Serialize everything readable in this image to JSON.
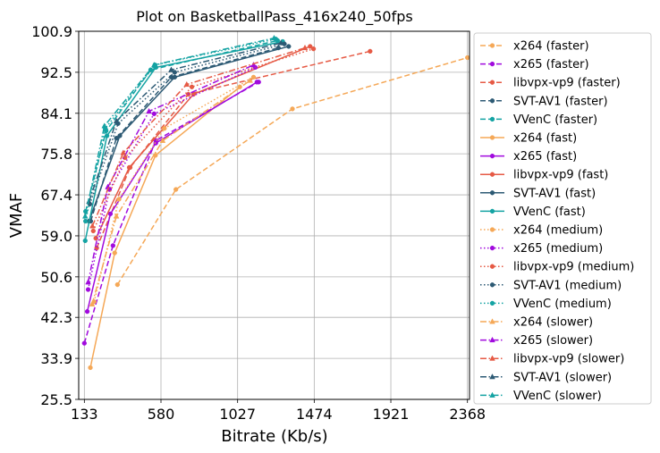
{
  "chart_data": {
    "type": "line",
    "title": "Plot on BasketballPass_416x240_50fps",
    "xlabel": "Bitrate (Kb/s)",
    "ylabel": "VMAF",
    "xlim": [
      100,
      2380
    ],
    "ylim": [
      25.5,
      100.9
    ],
    "xticks": [
      133,
      580,
      1027,
      1474,
      1921,
      2368
    ],
    "yticks": [
      25.5,
      33.9,
      42.3,
      50.6,
      59.0,
      67.4,
      75.8,
      84.1,
      92.5,
      100.9
    ],
    "grid": true,
    "legend_position": "outside-right",
    "series": [
      {
        "name": "x264 (faster)",
        "color": "#f5a857",
        "dash": "dashed",
        "marker": "circle",
        "x": [
          326,
          667,
          1347,
          2368
        ],
        "y": [
          49.0,
          68.5,
          85.0,
          95.5
        ]
      },
      {
        "name": "x265 (faster)",
        "color": "#a10ade",
        "dash": "dashed",
        "marker": "circle",
        "x": [
          133,
          300,
          550,
          1150
        ],
        "y": [
          37.0,
          57.0,
          78.5,
          90.5
        ]
      },
      {
        "name": "libvpx-vp9 (faster)",
        "color": "#e65a45",
        "dash": "dashed",
        "marker": "circle",
        "x": [
          205,
          400,
          740,
          1800
        ],
        "y": [
          56.5,
          73.0,
          88.0,
          96.8
        ]
      },
      {
        "name": "SVT-AV1 (faster)",
        "color": "#2d5a74",
        "dash": "dashed",
        "marker": "circle",
        "x": [
          170,
          320,
          640,
          1265
        ],
        "y": [
          62.0,
          79.0,
          91.5,
          97.5
        ]
      },
      {
        "name": "VVenC (faster)",
        "color": "#14a3a3",
        "dash": "dashed",
        "marker": "circle",
        "x": [
          140,
          260,
          520,
          1260
        ],
        "y": [
          64.0,
          80.5,
          93.0,
          99.0
        ]
      },
      {
        "name": "x264 (fast)",
        "color": "#f5a857",
        "dash": "solid",
        "marker": "circle",
        "x": [
          168,
          310,
          548,
          1040
        ],
        "y": [
          32.0,
          55.5,
          75.5,
          89.5
        ]
      },
      {
        "name": "x265 (fast)",
        "color": "#a10ade",
        "dash": "solid",
        "marker": "circle",
        "x": [
          150,
          285,
          550,
          1140
        ],
        "y": [
          43.5,
          63.5,
          78.0,
          90.5
        ]
      },
      {
        "name": "libvpx-vp9 (fast)",
        "color": "#e65a45",
        "dash": "solid",
        "marker": "circle",
        "x": [
          200,
          395,
          770,
          1450
        ],
        "y": [
          58.5,
          73.0,
          88.0,
          97.8
        ]
      },
      {
        "name": "SVT-AV1 (fast)",
        "color": "#2d5a74",
        "dash": "solid",
        "marker": "circle",
        "x": [
          160,
          340,
          660,
          1325
        ],
        "y": [
          62.0,
          79.5,
          91.5,
          97.8
        ]
      },
      {
        "name": "VVenC (fast)",
        "color": "#14a3a3",
        "dash": "solid",
        "marker": "circle",
        "x": [
          138,
          265,
          550,
          1290
        ],
        "y": [
          58.0,
          79.5,
          93.5,
          98.8
        ]
      },
      {
        "name": "x264 (medium)",
        "color": "#f5a857",
        "dash": "dotted",
        "marker": "circle",
        "x": [
          190,
          335,
          600,
          1120
        ],
        "y": [
          45.5,
          66.5,
          81.0,
          91.5
        ]
      },
      {
        "name": "x265 (medium)",
        "color": "#a10ade",
        "dash": "dotted",
        "marker": "circle",
        "x": [
          155,
          280,
          540,
          1130
        ],
        "y": [
          48.0,
          68.5,
          84.0,
          93.5
        ]
      },
      {
        "name": "libvpx-vp9 (medium)",
        "color": "#e65a45",
        "dash": "dotted",
        "marker": "circle",
        "x": [
          185,
          370,
          760,
          1470
        ],
        "y": [
          60.0,
          75.0,
          89.5,
          97.3
        ]
      },
      {
        "name": "SVT-AV1 (medium)",
        "color": "#2d5a74",
        "dash": "dotted",
        "marker": "circle",
        "x": [
          165,
          330,
          660,
          1300
        ],
        "y": [
          65.5,
          82.0,
          92.5,
          98.3
        ]
      },
      {
        "name": "VVenC (medium)",
        "color": "#14a3a3",
        "dash": "dotted",
        "marker": "circle",
        "x": [
          140,
          255,
          545,
          1250
        ],
        "y": [
          62.0,
          81.0,
          94.0,
          99.3
        ]
      },
      {
        "name": "x264 (slower)",
        "color": "#f5a857",
        "dash": "dashdot",
        "marker": "triangle",
        "x": [
          178,
          320,
          590,
          1100
        ],
        "y": [
          45.0,
          63.0,
          78.5,
          90.8
        ]
      },
      {
        "name": "x265 (slower)",
        "color": "#a10ade",
        "dash": "dashdot",
        "marker": "triangle",
        "x": [
          155,
          270,
          510,
          1120
        ],
        "y": [
          49.5,
          69.0,
          84.5,
          94.0
        ]
      },
      {
        "name": "libvpx-vp9 (slower)",
        "color": "#e65a45",
        "dash": "dashdot",
        "marker": "triangle",
        "x": [
          180,
          360,
          730,
          1420
        ],
        "y": [
          61.0,
          76.0,
          90.0,
          97.5
        ]
      },
      {
        "name": "SVT-AV1 (slower)",
        "color": "#2d5a74",
        "dash": "dashdot",
        "marker": "triangle",
        "x": [
          160,
          320,
          640,
          1280
        ],
        "y": [
          66.0,
          82.5,
          93.0,
          98.5
        ]
      },
      {
        "name": "VVenC (slower)",
        "color": "#14a3a3",
        "dash": "dashdot",
        "marker": "triangle",
        "x": [
          138,
          250,
          540,
          1240
        ],
        "y": [
          63.0,
          81.5,
          94.0,
          99.5
        ]
      }
    ]
  }
}
